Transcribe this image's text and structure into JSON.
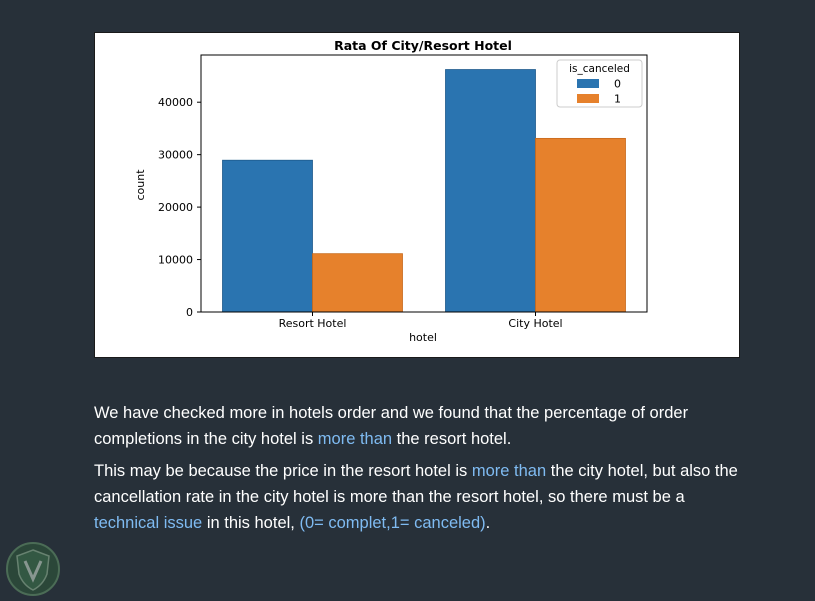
{
  "chart_data": {
    "type": "bar",
    "title": "Rata Of City/Resort Hotel",
    "xlabel": "hotel",
    "ylabel": "count",
    "categories": [
      "Resort Hotel",
      "City Hotel"
    ],
    "series": [
      {
        "name": "0",
        "values": [
          28938,
          46228
        ],
        "color": "#2a74b0"
      },
      {
        "name": "1",
        "values": [
          11122,
          33102
        ],
        "color": "#e6812c"
      }
    ],
    "ylim": [
      0,
      49000
    ],
    "yticks": [
      0,
      10000,
      20000,
      30000,
      40000
    ],
    "legend_title": "is_canceled",
    "legend_position": "top-right",
    "grid": false
  },
  "text": {
    "p1": [
      {
        "t": "We have checked more in hotels order and we found that the percentage of order completions in the city hotel is ",
        "hl": false
      },
      {
        "t": "more than",
        "hl": true
      },
      {
        "t": " the resort hotel.",
        "hl": false
      }
    ],
    "p2": [
      {
        "t": "This may be because the price in the resort hotel is ",
        "hl": false
      },
      {
        "t": "more than",
        "hl": true
      },
      {
        "t": " the city hotel, but also the cancellation rate in the city hotel is more than the resort hotel, so there must be a ",
        "hl": false
      },
      {
        "t": "technical issue",
        "hl": true
      },
      {
        "t": " in this hotel, ",
        "hl": false
      },
      {
        "t": "(0= complet,1= canceled)",
        "hl": true
      },
      {
        "t": ".",
        "hl": false
      }
    ]
  },
  "colors": {
    "background": "#273039",
    "highlight": "#7fbbf2"
  },
  "logo": {
    "icon": "shield-logo-icon"
  }
}
